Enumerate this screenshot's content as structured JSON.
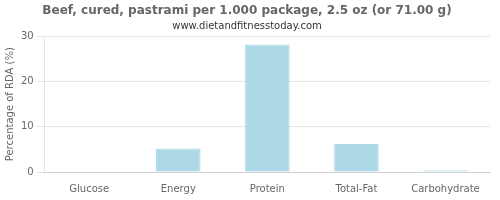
{
  "chart_data": {
    "type": "bar",
    "title": "Beef, cured, pastrami per 1.000 package, 2.5 oz (or 71.00 g)",
    "subtitle": "www.dietandfitnesstoday.com",
    "categories": [
      "Glucose",
      "Energy",
      "Protein",
      "Total-Fat",
      "Carbohydrate"
    ],
    "values": [
      0,
      5.2,
      28.2,
      6.2,
      0.4
    ],
    "color": "#add8e6",
    "ylabel": "Percentage of RDA (%)",
    "ylim": [
      0,
      30
    ],
    "yticks": [
      0,
      10,
      20,
      30
    ],
    "grid": true
  }
}
